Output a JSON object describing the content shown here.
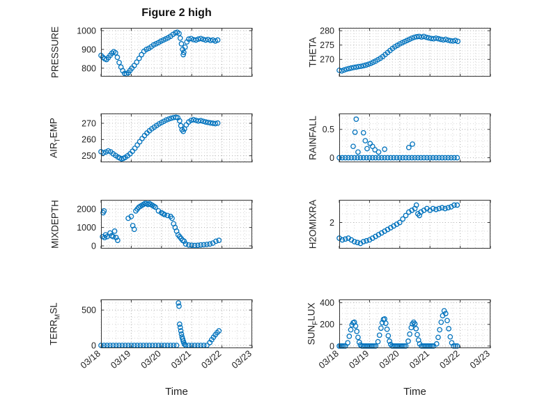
{
  "figure": {
    "title": "Figure 2 high",
    "xlabel": "Time",
    "xtick_values": [
      0,
      1,
      2,
      3,
      4,
      5
    ],
    "xtick_labels": [
      "03/18",
      "03/19",
      "03/20",
      "03/21",
      "03/22",
      "03/23"
    ],
    "xminor_step": 0.25
  },
  "style": {
    "marker_color": "#0072BD",
    "axis_color": "#333333",
    "grid_color": "#b3b3b3",
    "minor_grid_color": "#d6d6d6",
    "tick_label_color": "#222222",
    "marker_radius": 3.2,
    "marker_stroke": 1.3
  },
  "chart_data": [
    {
      "type": "scatter",
      "name": "PRESSURE",
      "ylabel": "PRESSURE",
      "yticks": [
        800,
        900,
        1000
      ],
      "ylim": [
        755,
        1015
      ],
      "yminor_step": 20,
      "xlim": [
        0,
        5
      ],
      "show_xtick_labels": false,
      "x": [
        0.0,
        0.06,
        0.12,
        0.18,
        0.24,
        0.3,
        0.36,
        0.42,
        0.48,
        0.54,
        0.6,
        0.66,
        0.72,
        0.78,
        0.84,
        0.9,
        0.96,
        1.02,
        1.1,
        1.18,
        1.26,
        1.34,
        1.42,
        1.5,
        1.58,
        1.66,
        1.74,
        1.82,
        1.9,
        1.98,
        2.06,
        2.14,
        2.22,
        2.3,
        2.38,
        2.46,
        2.52,
        2.58,
        2.62,
        2.66,
        2.7,
        2.72,
        2.74,
        2.78,
        2.84,
        2.9,
        2.98,
        3.06,
        3.14,
        3.22,
        3.3,
        3.38,
        3.46,
        3.54,
        3.62,
        3.7,
        3.78,
        3.86
      ],
      "y": [
        868,
        858,
        850,
        846,
        856,
        868,
        880,
        888,
        882,
        858,
        830,
        806,
        786,
        772,
        768,
        776,
        788,
        800,
        814,
        832,
        852,
        872,
        890,
        900,
        906,
        914,
        924,
        930,
        936,
        944,
        950,
        956,
        962,
        970,
        980,
        988,
        992,
        985,
        960,
        930,
        900,
        872,
        884,
        912,
        940,
        955,
        958,
        952,
        950,
        955,
        958,
        954,
        950,
        953,
        948,
        950,
        945,
        950
      ]
    },
    {
      "type": "scatter",
      "name": "THETA",
      "ylabel": "THETA",
      "yticks": [
        270,
        275,
        280
      ],
      "ylim": [
        264,
        281
      ],
      "yminor_step": 1,
      "xlim": [
        0,
        5
      ],
      "show_xtick_labels": false,
      "x": [
        0.0,
        0.08,
        0.16,
        0.24,
        0.32,
        0.4,
        0.48,
        0.56,
        0.64,
        0.72,
        0.8,
        0.88,
        0.96,
        1.04,
        1.12,
        1.2,
        1.28,
        1.36,
        1.44,
        1.52,
        1.6,
        1.68,
        1.76,
        1.84,
        1.92,
        2.0,
        2.08,
        2.16,
        2.24,
        2.32,
        2.4,
        2.48,
        2.56,
        2.64,
        2.72,
        2.8,
        2.88,
        2.96,
        3.04,
        3.12,
        3.2,
        3.28,
        3.36,
        3.44,
        3.52,
        3.6,
        3.68,
        3.76,
        3.84,
        3.92
      ],
      "y": [
        266.2,
        266.0,
        266.3,
        266.6,
        266.8,
        267.0,
        267.2,
        267.3,
        267.5,
        267.6,
        267.8,
        268.0,
        268.3,
        268.6,
        269.0,
        269.4,
        269.9,
        270.4,
        271.0,
        271.7,
        272.4,
        273.1,
        273.8,
        274.4,
        274.9,
        275.4,
        275.8,
        276.2,
        276.6,
        277.0,
        277.4,
        277.7,
        277.9,
        278.0,
        277.8,
        278.0,
        277.7,
        277.5,
        277.3,
        277.2,
        277.4,
        277.2,
        277.0,
        276.8,
        277.0,
        276.7,
        276.5,
        276.4,
        276.6,
        276.3
      ]
    },
    {
      "type": "scatter",
      "name": "AIRTEMP",
      "ylabel": "AIR_TEMP",
      "yticks": [
        250,
        260,
        270
      ],
      "ylim": [
        246,
        276
      ],
      "yminor_step": 2,
      "xlim": [
        0,
        5
      ],
      "show_xtick_labels": false,
      "x": [
        0.0,
        0.08,
        0.16,
        0.24,
        0.32,
        0.4,
        0.48,
        0.56,
        0.62,
        0.68,
        0.74,
        0.8,
        0.88,
        0.96,
        1.04,
        1.12,
        1.2,
        1.28,
        1.36,
        1.44,
        1.52,
        1.6,
        1.68,
        1.76,
        1.84,
        1.92,
        2.0,
        2.08,
        2.16,
        2.24,
        2.32,
        2.4,
        2.48,
        2.54,
        2.6,
        2.64,
        2.68,
        2.72,
        2.76,
        2.82,
        2.9,
        2.98,
        3.06,
        3.14,
        3.22,
        3.3,
        3.38,
        3.46,
        3.54,
        3.62,
        3.7,
        3.78,
        3.86
      ],
      "y": [
        252.5,
        251.8,
        252.3,
        253.0,
        252.4,
        251.2,
        250.2,
        249.2,
        248.6,
        248.1,
        248.4,
        249.0,
        250.0,
        251.2,
        252.8,
        254.6,
        256.6,
        258.6,
        260.6,
        262.4,
        264.0,
        265.4,
        266.6,
        267.6,
        268.6,
        269.6,
        270.4,
        271.2,
        272.0,
        272.6,
        273.1,
        273.5,
        273.7,
        273.4,
        271.5,
        268.5,
        266.0,
        265.0,
        266.5,
        269.0,
        270.8,
        271.8,
        272.2,
        271.8,
        271.4,
        271.6,
        271.2,
        270.8,
        270.5,
        270.2,
        270.0,
        269.8,
        270.1
      ]
    },
    {
      "type": "scatter",
      "name": "RAINFALL",
      "ylabel": "RAINFALL",
      "yticks": [
        0,
        0.5
      ],
      "ylim": [
        -0.08,
        0.78
      ],
      "yminor_step": 0.1,
      "xlim": [
        0,
        5
      ],
      "show_xtick_labels": false,
      "x": [
        0,
        0.1,
        0.2,
        0.3,
        0.4,
        0.5,
        0.6,
        0.7,
        0.8,
        0.9,
        1,
        1.1,
        1.2,
        1.3,
        1.4,
        1.5,
        1.6,
        1.7,
        1.8,
        1.9,
        2,
        2.1,
        2.2,
        2.3,
        2.4,
        2.5,
        2.6,
        2.7,
        2.8,
        2.9,
        3,
        3.1,
        3.2,
        3.3,
        3.4,
        3.5,
        3.6,
        3.7,
        3.8,
        3.9,
        0.46,
        0.52,
        0.56,
        0.62,
        0.8,
        0.86,
        0.92,
        1.02,
        1.1,
        1.18,
        1.3,
        1.5,
        2.3,
        2.42
      ],
      "y": [
        0,
        0,
        0,
        0,
        0,
        0,
        0,
        0,
        0,
        0,
        0,
        0,
        0,
        0,
        0,
        0,
        0,
        0,
        0,
        0,
        0,
        0,
        0,
        0,
        0,
        0,
        0,
        0,
        0,
        0,
        0,
        0,
        0,
        0,
        0,
        0,
        0,
        0,
        0,
        0,
        0.2,
        0.45,
        0.68,
        0.1,
        0.44,
        0.3,
        0.16,
        0.25,
        0.2,
        0.14,
        0.1,
        0.15,
        0.18,
        0.24
      ]
    },
    {
      "type": "scatter",
      "name": "MIXDEPTH",
      "ylabel": "MIXDEPTH",
      "yticks": [
        0,
        1000,
        2000
      ],
      "ylim": [
        -150,
        2500
      ],
      "yminor_step": 200,
      "xlim": [
        0,
        5
      ],
      "show_xtick_labels": false,
      "x": [
        0.05,
        0.07,
        0.1,
        0.12,
        0.15,
        0.2,
        0.3,
        0.35,
        0.4,
        0.45,
        0.5,
        0.55,
        0.9,
        1.0,
        1.05,
        1.1,
        1.15,
        1.2,
        1.25,
        1.3,
        1.35,
        1.4,
        1.45,
        1.5,
        1.55,
        1.6,
        1.65,
        1.7,
        1.75,
        1.8,
        1.9,
        2.0,
        2.05,
        2.1,
        2.2,
        2.3,
        2.35,
        2.4,
        2.45,
        2.5,
        2.55,
        2.6,
        2.65,
        2.7,
        2.75,
        2.8,
        2.9,
        3.0,
        3.1,
        3.2,
        3.3,
        3.4,
        3.5,
        3.6,
        3.7,
        3.8,
        3.9
      ],
      "y": [
        500,
        1800,
        1900,
        450,
        600,
        500,
        700,
        550,
        500,
        800,
        450,
        300,
        1500,
        1600,
        1100,
        900,
        1900,
        2000,
        2100,
        2150,
        2200,
        2250,
        2300,
        2300,
        2250,
        2300,
        2250,
        2200,
        2150,
        2100,
        1900,
        1800,
        1750,
        1700,
        1650,
        1600,
        1500,
        1200,
        1000,
        800,
        600,
        500,
        400,
        300,
        250,
        100,
        50,
        30,
        20,
        30,
        50,
        60,
        80,
        100,
        150,
        250,
        300
      ]
    },
    {
      "type": "scatter",
      "name": "H2OMIXRA",
      "ylabel": "H2OMIXRA",
      "yticks": [
        2
      ],
      "ylim": [
        0.5,
        3.3
      ],
      "yminor_step": 0.5,
      "xlim": [
        0,
        5
      ],
      "show_xtick_labels": false,
      "x": [
        0,
        0.1,
        0.2,
        0.3,
        0.4,
        0.5,
        0.6,
        0.7,
        0.8,
        0.9,
        1.0,
        1.1,
        1.2,
        1.3,
        1.4,
        1.5,
        1.6,
        1.7,
        1.8,
        1.9,
        2.0,
        2.1,
        2.2,
        2.3,
        2.4,
        2.5,
        2.55,
        2.6,
        2.65,
        2.7,
        2.8,
        2.9,
        3.0,
        3.1,
        3.2,
        3.3,
        3.4,
        3.5,
        3.6,
        3.7,
        3.8,
        3.9
      ],
      "y": [
        1.1,
        1.0,
        1.05,
        1.1,
        1.0,
        0.9,
        0.85,
        0.8,
        0.9,
        0.95,
        1.0,
        1.1,
        1.2,
        1.3,
        1.4,
        1.5,
        1.6,
        1.7,
        1.8,
        1.9,
        2.0,
        2.2,
        2.4,
        2.6,
        2.7,
        2.8,
        3.0,
        2.5,
        2.4,
        2.6,
        2.7,
        2.8,
        2.7,
        2.8,
        2.75,
        2.8,
        2.85,
        2.8,
        2.85,
        2.9,
        3.0,
        3.0
      ]
    },
    {
      "type": "scatter",
      "name": "TERR_MSL",
      "ylabel": "TERR_MSL",
      "yticks": [
        0,
        500
      ],
      "ylim": [
        -40,
        650
      ],
      "yminor_step": 100,
      "xlim": [
        0,
        5
      ],
      "show_xtick_labels": true,
      "x": [
        0,
        0.1,
        0.2,
        0.3,
        0.4,
        0.5,
        0.6,
        0.7,
        0.8,
        0.9,
        1.0,
        1.1,
        1.2,
        1.3,
        1.4,
        1.5,
        1.6,
        1.7,
        1.8,
        1.9,
        2.0,
        2.1,
        2.2,
        2.3,
        2.4,
        2.5,
        2.8,
        2.9,
        3.0,
        3.1,
        3.2,
        3.3,
        3.4,
        3.5,
        2.56,
        2.58,
        2.6,
        2.62,
        2.64,
        2.66,
        2.68,
        2.7,
        2.72,
        2.74,
        2.76,
        3.6,
        3.66,
        3.72,
        3.78,
        3.84,
        3.9
      ],
      "y": [
        0,
        0,
        0,
        0,
        0,
        0,
        0,
        0,
        0,
        0,
        0,
        0,
        0,
        0,
        0,
        0,
        0,
        0,
        0,
        0,
        0,
        0,
        0,
        0,
        0,
        0,
        0,
        0,
        0,
        0,
        0,
        0,
        0,
        0,
        600,
        555,
        300,
        255,
        205,
        160,
        120,
        90,
        60,
        35,
        15,
        40,
        80,
        115,
        150,
        180,
        205
      ]
    },
    {
      "type": "scatter",
      "name": "SUN_FLUX",
      "ylabel": "SUN_FLUX",
      "yticks": [
        0,
        200,
        400
      ],
      "ylim": [
        -20,
        430
      ],
      "yminor_step": 50,
      "xlim": [
        0,
        5
      ],
      "show_xtick_labels": true,
      "x": [
        0,
        0.05,
        0.1,
        0.15,
        0.2,
        0.28,
        0.33,
        0.38,
        0.42,
        0.46,
        0.5,
        0.54,
        0.58,
        0.62,
        0.66,
        0.7,
        0.75,
        0.8,
        0.85,
        0.9,
        0.95,
        1.0,
        1.05,
        1.1,
        1.15,
        1.2,
        1.28,
        1.33,
        1.38,
        1.42,
        1.46,
        1.5,
        1.54,
        1.58,
        1.62,
        1.66,
        1.7,
        1.75,
        1.8,
        1.85,
        1.9,
        1.95,
        2.0,
        2.05,
        2.1,
        2.15,
        2.2,
        2.28,
        2.33,
        2.38,
        2.42,
        2.46,
        2.5,
        2.54,
        2.58,
        2.62,
        2.66,
        2.72,
        2.77,
        2.82,
        2.87,
        2.92,
        2.97,
        3.02,
        3.07,
        3.12,
        3.22,
        3.27,
        3.32,
        3.37,
        3.42,
        3.47,
        3.52,
        3.57,
        3.62,
        3.67,
        3.72,
        3.78,
        3.84,
        3.9
      ],
      "y": [
        0,
        0,
        0,
        0,
        0,
        30,
        90,
        150,
        195,
        215,
        220,
        185,
        135,
        80,
        35,
        10,
        0,
        0,
        0,
        0,
        0,
        0,
        0,
        0,
        0,
        0,
        40,
        100,
        165,
        215,
        245,
        250,
        210,
        155,
        95,
        45,
        15,
        0,
        0,
        0,
        0,
        0,
        0,
        0,
        0,
        0,
        0,
        45,
        110,
        170,
        205,
        220,
        205,
        160,
        105,
        55,
        20,
        0,
        0,
        0,
        0,
        0,
        0,
        0,
        0,
        0,
        20,
        80,
        150,
        220,
        280,
        325,
        300,
        235,
        160,
        85,
        30,
        0,
        0,
        0
      ]
    }
  ]
}
